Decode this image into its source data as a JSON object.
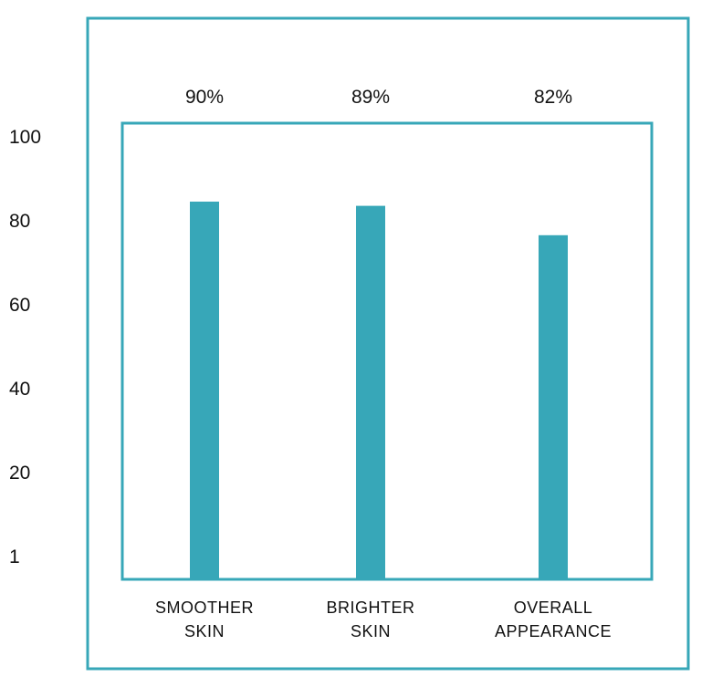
{
  "chart_data": {
    "type": "bar",
    "categories": [
      [
        "SMOOTHER",
        "SKIN"
      ],
      [
        "BRIGHTER",
        "SKIN"
      ],
      [
        "OVERALL",
        "APPEARANCE"
      ]
    ],
    "values": [
      90,
      89,
      82
    ],
    "value_labels": [
      "90%",
      "89%",
      "82%"
    ],
    "y_ticks": [
      "100",
      "80",
      "60",
      "40",
      "20",
      "1"
    ],
    "ylim": [
      0,
      100
    ],
    "title": "",
    "xlabel": "",
    "ylabel": "",
    "grid": false,
    "colors": {
      "bar": "#37a7b8",
      "frame": "#37a7b8",
      "text": "#111111"
    }
  }
}
